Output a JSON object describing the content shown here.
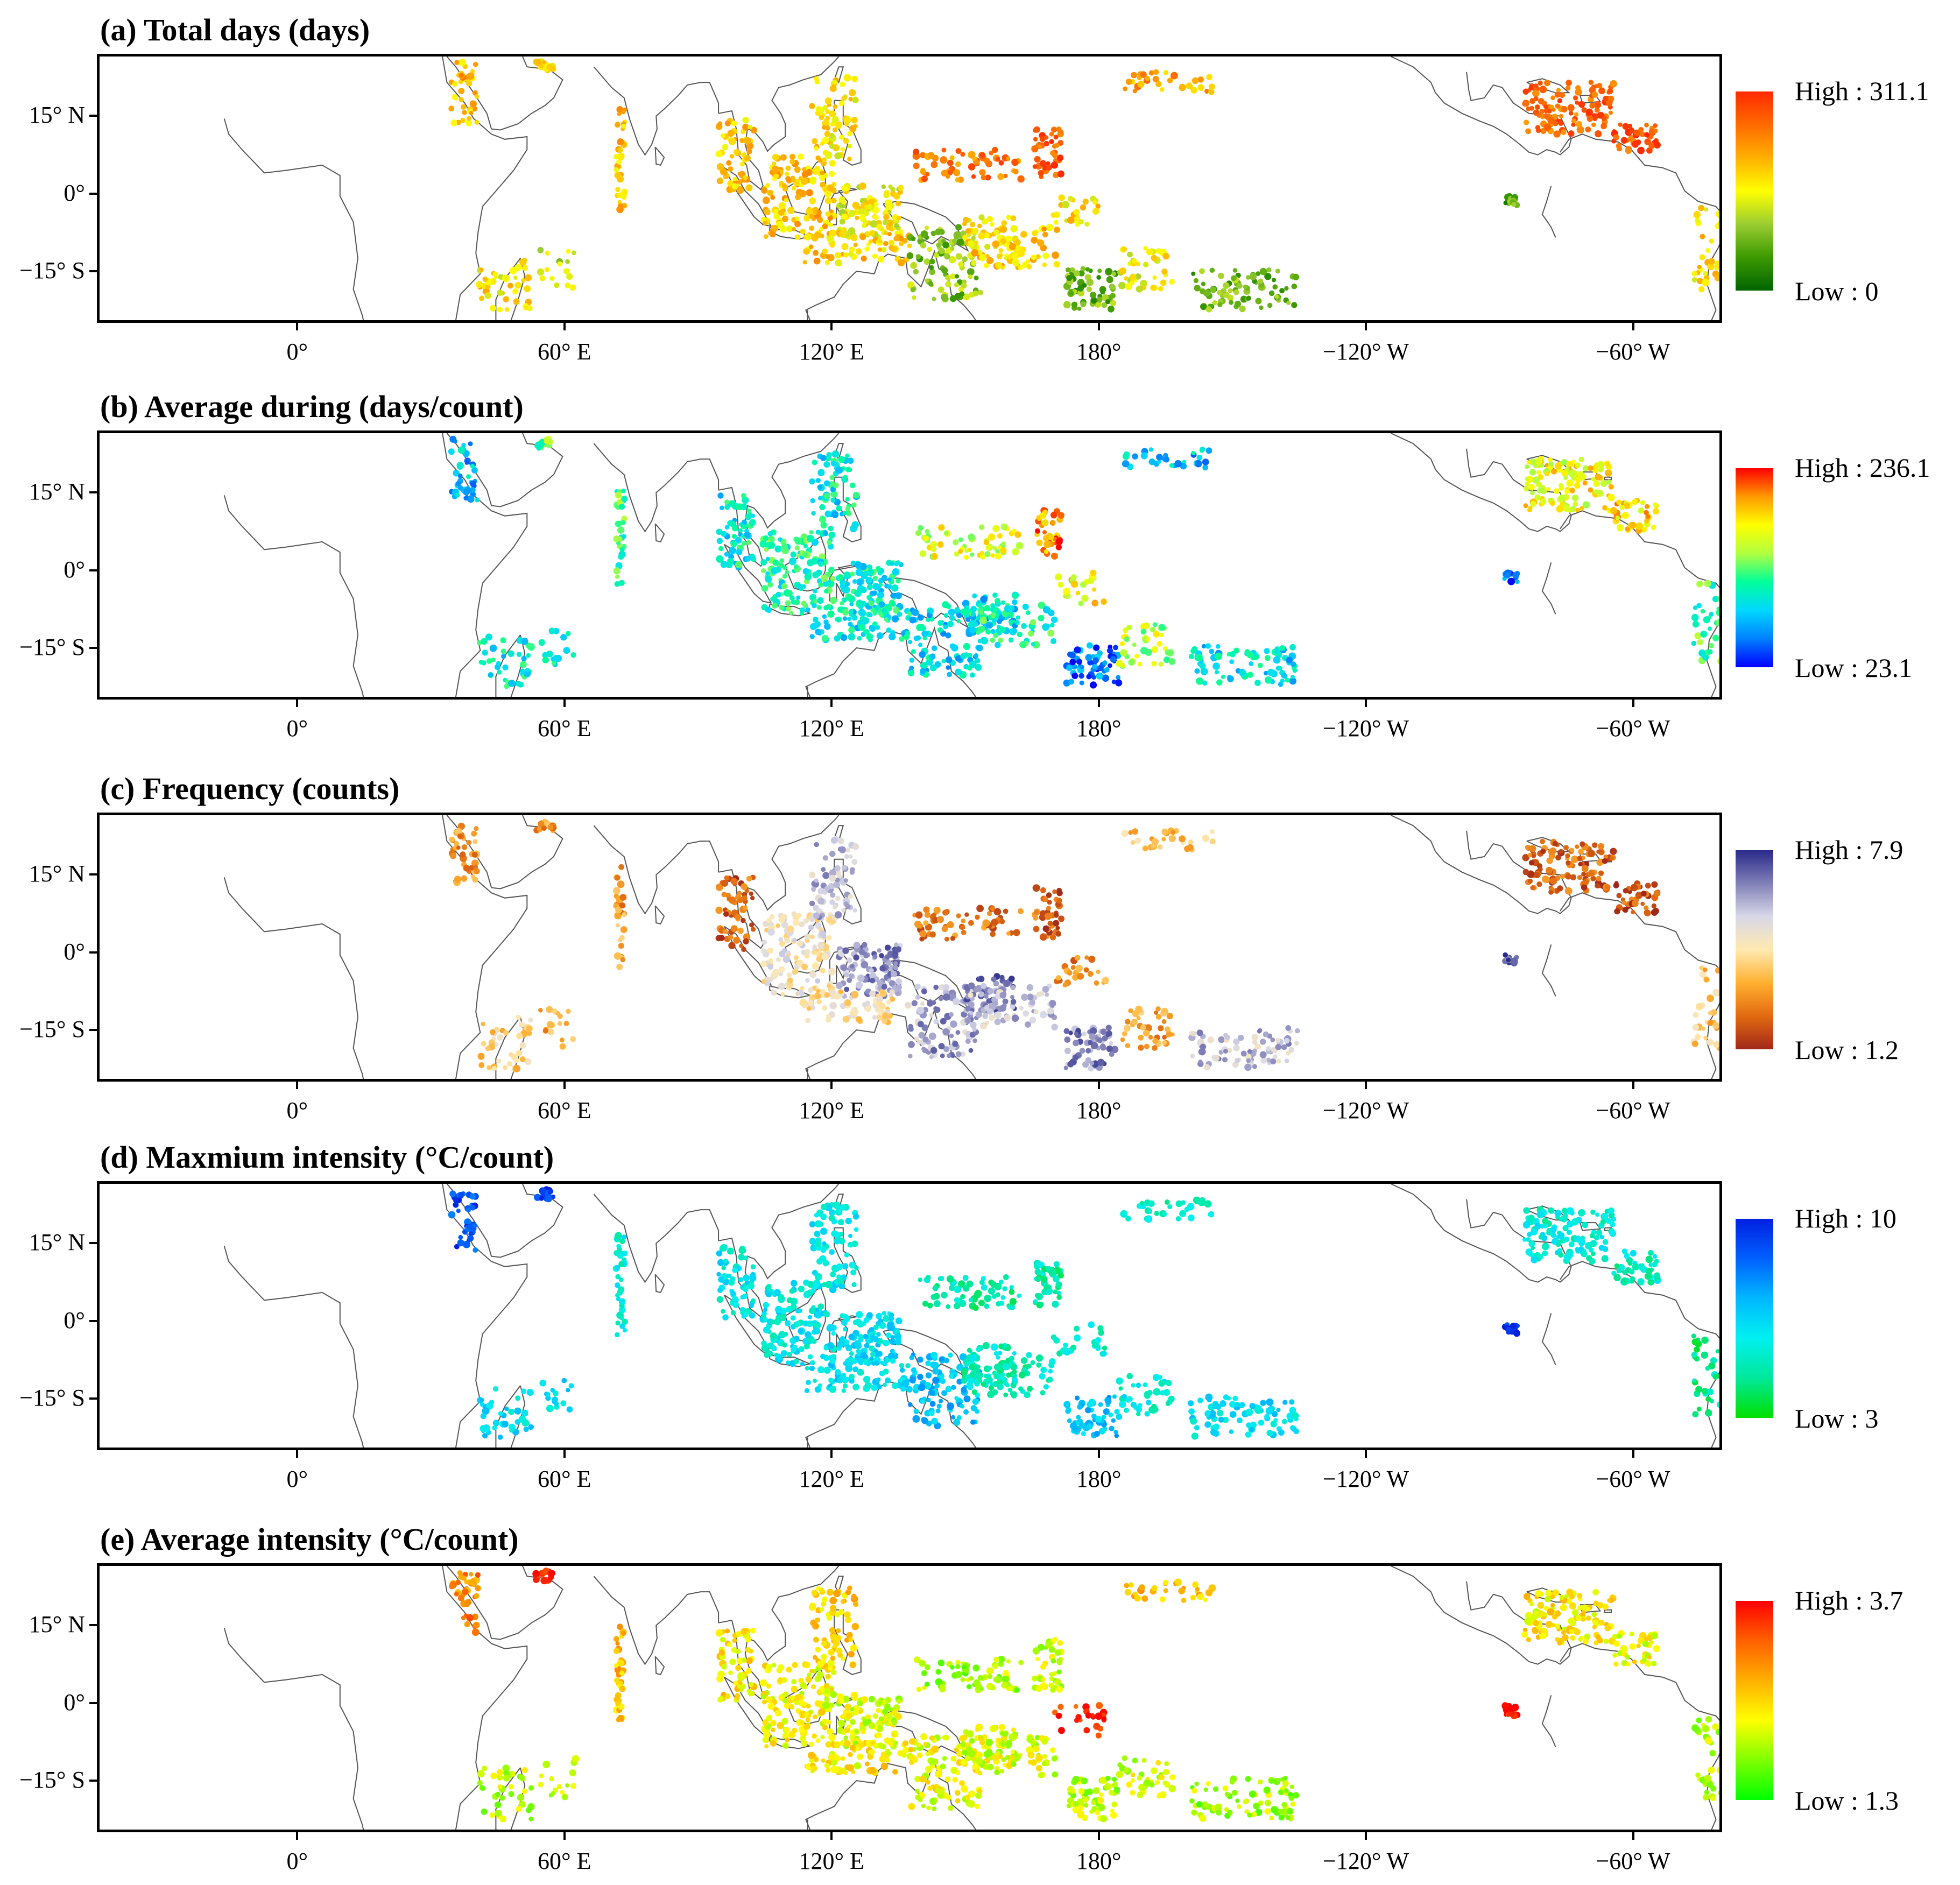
{
  "figure": {
    "lat_ticks": [
      "15° N",
      "0°",
      "−15° S"
    ],
    "lon_ticks": [
      "0°",
      "60° E",
      "120° E",
      "180°",
      "−120° W",
      "−60° W"
    ],
    "panels": [
      {
        "id": "a",
        "title": "(a) Total days (days)",
        "legend_high": "High : 311.1",
        "legend_low": "Low : 0",
        "colormap": [
          "#006400",
          "#3c9a00",
          "#9acd32",
          "#ffff00",
          "#ffb000",
          "#ff6a00",
          "#ff2a00"
        ]
      },
      {
        "id": "b",
        "title": "(b) Average during (days/count)",
        "legend_high": "High : 236.1",
        "legend_low": "Low : 23.1",
        "colormap": [
          "#0000ff",
          "#0080ff",
          "#00d8ff",
          "#00ff9a",
          "#b0ff40",
          "#ffff00",
          "#ff9a00",
          "#ff0000"
        ]
      },
      {
        "id": "c",
        "title": "(c) Frequency (counts)",
        "legend_high": "High : 7.9",
        "legend_low": "Low : 1.2",
        "colormap": [
          "#a0281a",
          "#e26a10",
          "#ffb030",
          "#ffe9b0",
          "#d8d8e8",
          "#8080b8",
          "#2a2a8a"
        ]
      },
      {
        "id": "d",
        "title": "(d) Maxmium intensity (°C/count)",
        "legend_high": "High : 10",
        "legend_low": "Low : 3",
        "colormap": [
          "#00e000",
          "#00e89a",
          "#00f0f0",
          "#00b8ff",
          "#0060ff",
          "#0020e0"
        ]
      },
      {
        "id": "e",
        "title": "(e) Average intensity (°C/count)",
        "legend_high": "High : 3.7",
        "legend_low": "Low : 1.3",
        "colormap": [
          "#00ff00",
          "#80ff00",
          "#ffff00",
          "#ffb000",
          "#ff6000",
          "#ff0000"
        ]
      }
    ]
  }
}
